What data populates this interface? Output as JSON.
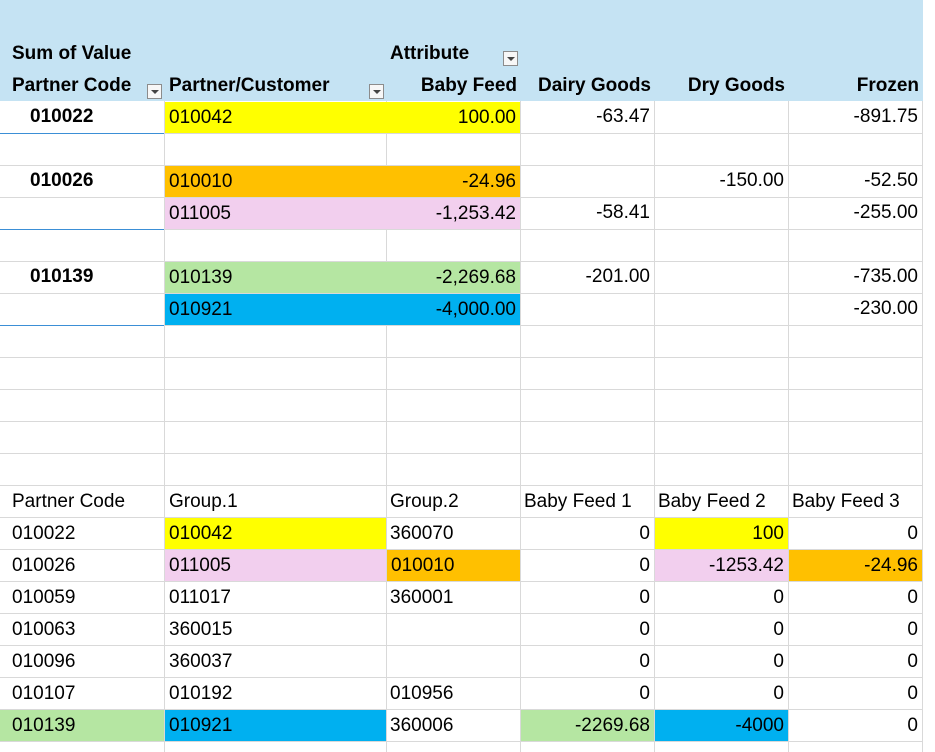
{
  "pivot": {
    "value_label": "Sum of Value",
    "column_field": "Attribute",
    "row_field_1": "Partner Code",
    "row_field_2": "Partner/Customer",
    "columns": [
      "Baby Feed",
      "Dairy Goods",
      "Dry Goods",
      "Frozen"
    ],
    "groups": [
      {
        "code": "010022",
        "rows": [
          {
            "customer": "010042",
            "baby_feed": "100.00",
            "dairy": "-63.47",
            "dry": "",
            "frozen": "-891.75",
            "highlight": "#ffff00"
          }
        ]
      },
      {
        "code": "010026",
        "rows": [
          {
            "customer": "010010",
            "baby_feed": "-24.96",
            "dairy": "",
            "dry": "-150.00",
            "frozen": "-52.50",
            "highlight": "#ffc000"
          },
          {
            "customer": "011005",
            "baby_feed": "-1,253.42",
            "dairy": "-58.41",
            "dry": "",
            "frozen": "-255.00",
            "highlight": "#f2cfee"
          }
        ]
      },
      {
        "code": "010139",
        "rows": [
          {
            "customer": "010139",
            "baby_feed": "-2,269.68",
            "dairy": "-201.00",
            "dry": "",
            "frozen": "-735.00",
            "highlight": "#b5e6a2"
          },
          {
            "customer": "010921",
            "baby_feed": "-4,000.00",
            "dairy": "",
            "dry": "",
            "frozen": "-230.00",
            "highlight": "#00b0f0"
          }
        ]
      }
    ]
  },
  "table": {
    "headers": [
      "Partner Code",
      "Group.1",
      "Group.2",
      "Baby Feed 1",
      "Baby Feed 2",
      "Baby Feed 3"
    ],
    "rows": [
      [
        "010022",
        "010042",
        "360070",
        "0",
        "100",
        "0"
      ],
      [
        "010026",
        "011005",
        "010010",
        "0",
        "-1253.42",
        "-24.96"
      ],
      [
        "010059",
        "011017",
        "360001",
        "0",
        "0",
        "0"
      ],
      [
        "010063",
        "360015",
        "",
        "0",
        "0",
        "0"
      ],
      [
        "010096",
        "360037",
        "",
        "0",
        "0",
        "0"
      ],
      [
        "010107",
        "010192",
        "010956",
        "0",
        "0",
        "0"
      ],
      [
        "010139",
        "010921",
        "360006",
        "-2269.68",
        "-4000",
        "0"
      ]
    ]
  },
  "colors": {
    "header_band": "#c5e3f3",
    "yellow": "#ffff00",
    "orange": "#ffc000",
    "pink": "#f2cfee",
    "green": "#b5e6a2",
    "blue": "#00b0f0"
  }
}
